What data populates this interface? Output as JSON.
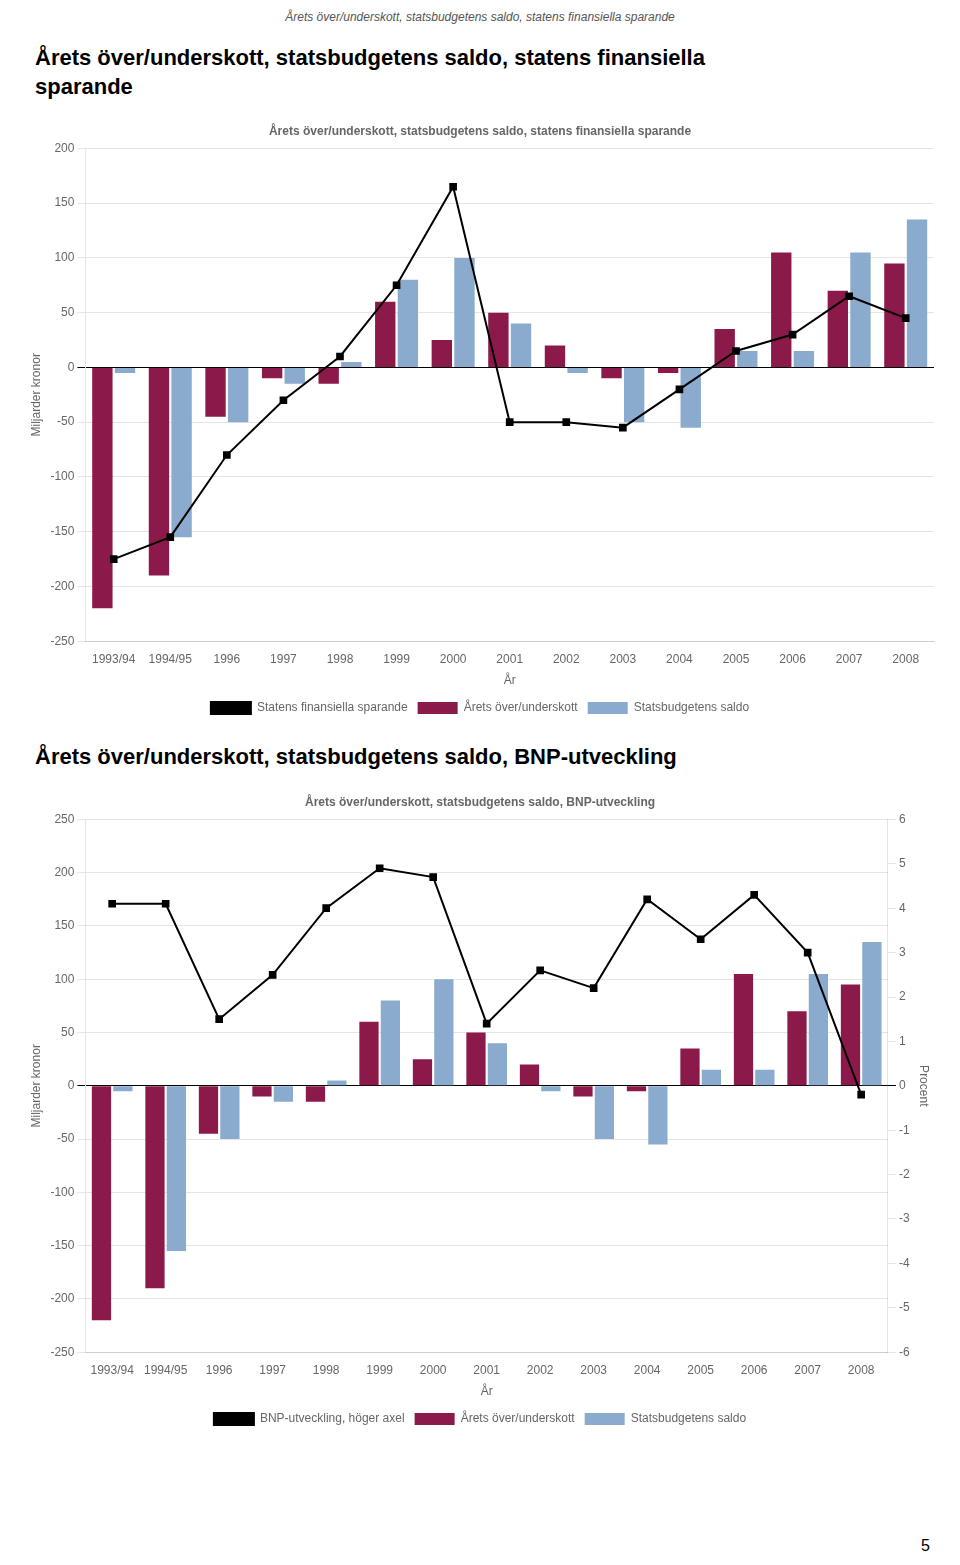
{
  "title": "Årets över/underskott, statsbudgetens saldo, statens finansiella sparande",
  "annotations": [
    "5"
  ],
  "chart_data": [
    {
      "type": "bar",
      "title": "Årets över/underskott, statsbudgetens saldo, statens finansiella\nsparande",
      "subtitle": "Årets över/underskott, statsbudgetens saldo, statens finansiella sparande",
      "xlabel": "År",
      "ylabel": "Miljarder kronor",
      "ylim": [
        -250,
        200
      ],
      "yticks": [
        -250,
        -200,
        -150,
        -100,
        -50,
        0,
        50,
        100,
        150,
        200
      ],
      "grid": true,
      "legend": "bottom",
      "categories": [
        "1993/94",
        "1994/95",
        "1996",
        "1997",
        "1998",
        "1999",
        "2000",
        "2001",
        "2002",
        "2003",
        "2004",
        "2005",
        "2006",
        "2007",
        "2008"
      ],
      "series": [
        {
          "name": "Årets över/underskott",
          "color": "#8B1A4A",
          "values": [
            -220,
            -190,
            -45,
            -10,
            -15,
            60,
            25,
            50,
            20,
            -10,
            -5,
            35,
            105,
            70,
            95
          ]
        },
        {
          "name": "Statsbudgetens saldo",
          "color": "#8AABCD",
          "values": [
            -5,
            -155,
            -50,
            -15,
            5,
            80,
            100,
            40,
            -5,
            -50,
            -55,
            15,
            15,
            105,
            135
          ]
        },
        {
          "name": "Statens finansiella sparande",
          "type": "line",
          "marker": "square",
          "color": "#000000",
          "values": [
            -175,
            -155,
            -80,
            -30,
            10,
            75,
            165,
            -50,
            -50,
            -55,
            -20,
            15,
            30,
            65,
            45
          ]
        }
      ]
    },
    {
      "type": "bar",
      "title": "Årets över/underskott, statsbudgetens saldo, BNP-utveckling",
      "subtitle": "Årets över/underskott, statsbudgetens saldo, BNP-utveckling",
      "xlabel": "År",
      "ylabel": "Miljarder kronor",
      "y2label": "Procent",
      "ylim": [
        -250,
        250
      ],
      "yticks": [
        -250,
        -200,
        -150,
        -100,
        -50,
        0,
        50,
        100,
        150,
        200,
        250
      ],
      "y2lim": [
        -6,
        6
      ],
      "y2ticks": [
        -6,
        -5,
        -4,
        -3,
        -2,
        -1,
        0,
        1,
        2,
        3,
        4,
        5,
        6
      ],
      "grid": true,
      "legend": "bottom",
      "categories": [
        "1993/94",
        "1994/95",
        "1996",
        "1997",
        "1998",
        "1999",
        "2000",
        "2001",
        "2002",
        "2003",
        "2004",
        "2005",
        "2006",
        "2007",
        "2008"
      ],
      "series": [
        {
          "name": "Årets över/underskott",
          "color": "#8B1A4A",
          "values": [
            -220,
            -190,
            -45,
            -10,
            -15,
            60,
            25,
            50,
            20,
            -10,
            -5,
            35,
            105,
            70,
            95
          ]
        },
        {
          "name": "Statsbudgetens saldo",
          "color": "#8AABCD",
          "values": [
            -5,
            -155,
            -50,
            -15,
            5,
            80,
            100,
            40,
            -5,
            -50,
            -55,
            15,
            15,
            105,
            135
          ]
        },
        {
          "name": "BNP-utveckling, höger axel",
          "type": "line",
          "axis": "y2",
          "marker": "square",
          "color": "#000000",
          "values": [
            4.1,
            4.1,
            1.5,
            2.5,
            4.0,
            4.9,
            4.7,
            1.4,
            2.6,
            2.2,
            4.2,
            3.3,
            4.3,
            3.0,
            -0.2
          ]
        }
      ]
    }
  ]
}
